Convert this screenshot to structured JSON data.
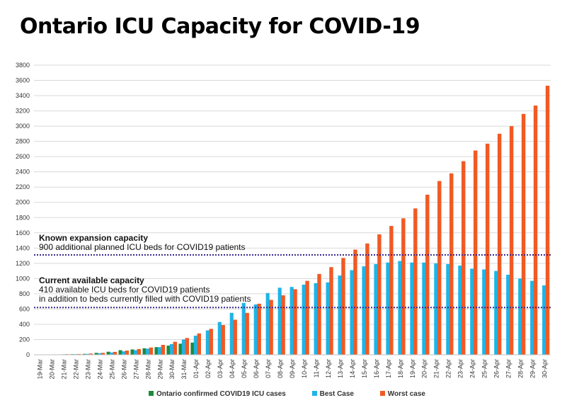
{
  "title": "Ontario ICU Capacity for COVID-19",
  "chart_data": {
    "type": "bar",
    "title": "Ontario ICU Capacity for COVID-19",
    "xlabel": "",
    "ylabel": "",
    "ylim": [
      0,
      3800
    ],
    "yticks": [
      0,
      200,
      400,
      600,
      800,
      1000,
      1200,
      1400,
      1600,
      1800,
      2000,
      2200,
      2400,
      2600,
      2800,
      3000,
      3200,
      3400,
      3600,
      3800
    ],
    "grid": true,
    "legend_position": "bottom",
    "categories": [
      "19-Mar",
      "20-Mar",
      "21-Mar",
      "22-Mar",
      "23-Mar",
      "24-Mar",
      "25-Mar",
      "26-Mar",
      "27-Mar",
      "28-Mar",
      "29-Mar",
      "30-Mar",
      "31-Mar",
      "01-Apr",
      "02-Apr",
      "03-Apr",
      "04-Apr",
      "05-Apr",
      "06-Apr",
      "07-Apr",
      "08-Apr",
      "09-Apr",
      "10-Apr",
      "11-Apr",
      "12-Apr",
      "13-Apr",
      "14-Apr",
      "15-Apr",
      "16-Apr",
      "17-Apr",
      "18-Apr",
      "19-Apr",
      "20-Apr",
      "21-Apr",
      "22-Apr",
      "23-Apr",
      "24-Apr",
      "25-Apr",
      "26-Apr",
      "27-Apr",
      "28-Apr",
      "29-Apr",
      "30-Apr"
    ],
    "series": [
      {
        "name": "Ontario confirmed COVID19 ICU cases",
        "color": "#1e8a3c",
        "values": [
          3,
          4,
          5,
          8,
          12,
          25,
          40,
          60,
          70,
          85,
          100,
          120,
          145,
          160,
          null,
          null,
          null,
          null,
          null,
          null,
          null,
          null,
          null,
          null,
          null,
          null,
          null,
          null,
          null,
          null,
          null,
          null,
          null,
          null,
          null,
          null,
          null,
          null,
          null,
          null,
          null,
          null,
          null
        ]
      },
      {
        "name": "Best Case",
        "color": "#1fb4e6",
        "values": [
          2,
          4,
          6,
          8,
          12,
          20,
          30,
          45,
          60,
          80,
          100,
          140,
          200,
          250,
          320,
          430,
          550,
          680,
          660,
          810,
          880,
          890,
          920,
          940,
          950,
          1040,
          1110,
          1160,
          1190,
          1210,
          1230,
          1210,
          1210,
          1200,
          1190,
          1170,
          1130,
          1120,
          1100,
          1050,
          1000,
          970,
          910
        ]
      },
      {
        "name": "Worst case",
        "color": "#f05a24",
        "values": [
          3,
          5,
          8,
          10,
          16,
          25,
          38,
          55,
          75,
          95,
          130,
          170,
          220,
          280,
          340,
          390,
          460,
          550,
          670,
          720,
          780,
          860,
          970,
          1060,
          1150,
          1270,
          1380,
          1460,
          1580,
          1690,
          1790,
          1920,
          2100,
          2280,
          2380,
          2540,
          2680,
          2770,
          2900,
          3000,
          3160,
          3270,
          3530
        ]
      }
    ],
    "reference_lines": [
      {
        "value": 1310,
        "heading": "Known expansion capacity",
        "lines": [
          "900 additional planned ICU beds for COVID19 patients"
        ]
      },
      {
        "value": 620,
        "heading": "Current available capacity",
        "lines": [
          "410 available ICU beds for COVID19 patients",
          "in addition to beds currently filled with COVID19 patients"
        ]
      }
    ]
  }
}
